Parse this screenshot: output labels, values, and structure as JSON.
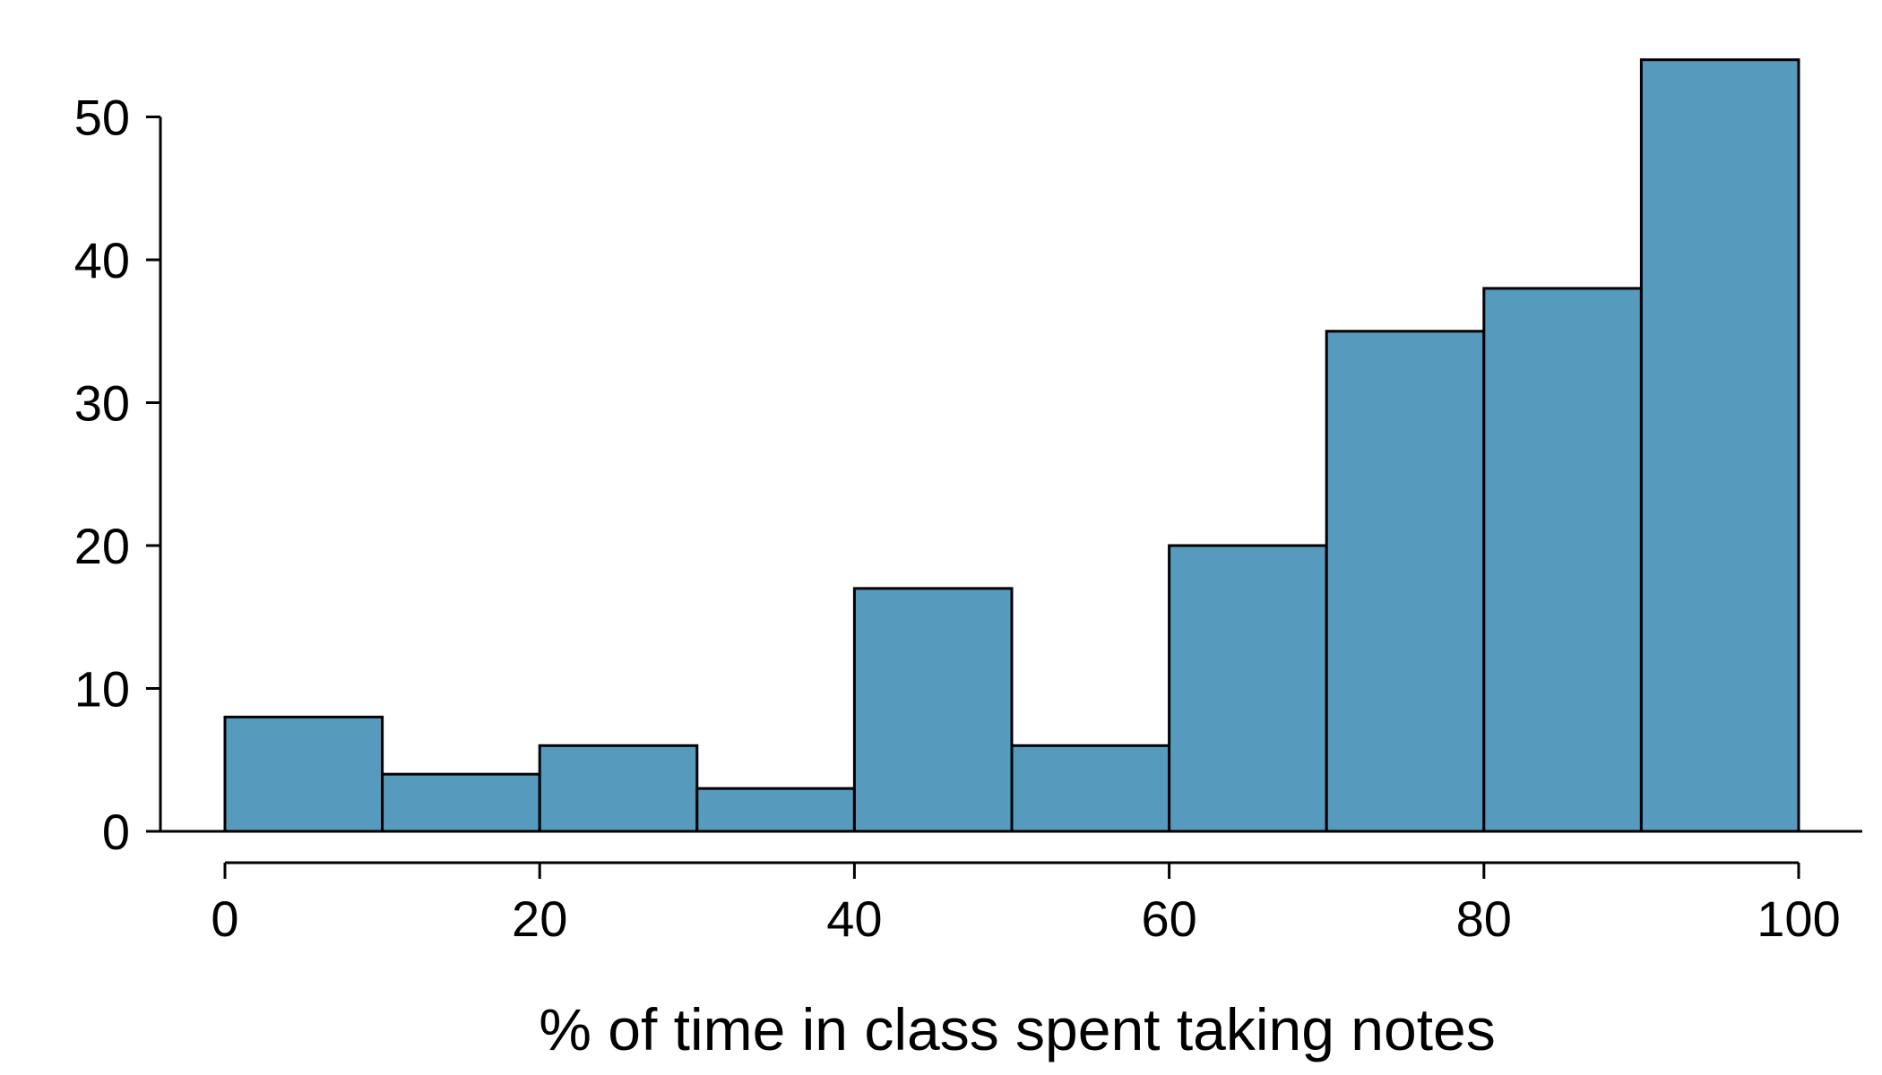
{
  "chart_data": {
    "type": "bar",
    "subtype": "histogram",
    "bins": [
      {
        "start": 0,
        "end": 10,
        "count": 8
      },
      {
        "start": 10,
        "end": 20,
        "count": 4
      },
      {
        "start": 20,
        "end": 30,
        "count": 6
      },
      {
        "start": 30,
        "end": 40,
        "count": 3
      },
      {
        "start": 40,
        "end": 50,
        "count": 17
      },
      {
        "start": 50,
        "end": 60,
        "count": 6
      },
      {
        "start": 60,
        "end": 70,
        "count": 20
      },
      {
        "start": 70,
        "end": 80,
        "count": 35
      },
      {
        "start": 80,
        "end": 90,
        "count": 38
      },
      {
        "start": 90,
        "end": 100,
        "count": 54
      }
    ],
    "title": "",
    "xlabel": "% of time in class spent taking notes",
    "ylabel": "",
    "xlim": [
      0,
      100
    ],
    "ylim": [
      0,
      55
    ],
    "xticks": [
      "0",
      "20",
      "40",
      "60",
      "80",
      "100"
    ],
    "yticks": [
      "0",
      "10",
      "20",
      "30",
      "40",
      "50"
    ],
    "bar_color": "#569bbe",
    "grid": false
  }
}
